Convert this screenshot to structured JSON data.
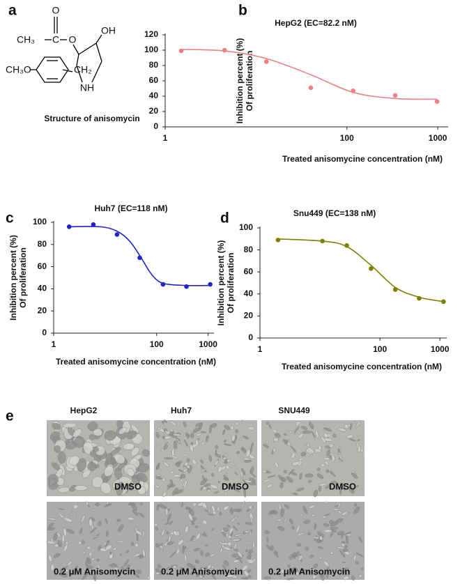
{
  "panel_labels": [
    "a",
    "b",
    "c",
    "d",
    "e"
  ],
  "structure": {
    "atoms": [
      "O",
      "CH₃",
      "C",
      "O",
      "OH",
      "CH₃O",
      "CH₂",
      "NH"
    ],
    "caption": "Structure of anisomycin"
  },
  "chart_data": [
    {
      "type": "line",
      "title": "HepG2 (EC=82.2 nM)",
      "ylabel": [
        "Inhibition percent (%)",
        "Of proliferation"
      ],
      "xlabel": "Treated anisomycine concentration  (nM)",
      "xscale": "log",
      "xlim": [
        1,
        1300
      ],
      "xticks": [
        1,
        100,
        1000
      ],
      "ylim": [
        0,
        120
      ],
      "yticks": [
        0,
        20,
        40,
        60,
        80,
        100,
        120
      ],
      "x": [
        1.5,
        4.5,
        13,
        40,
        117,
        340,
        980
      ],
      "series": [
        {
          "color": "#f08080",
          "values": [
            99,
            100,
            85,
            51,
            47,
            41,
            33
          ]
        },
        {
          "color": "#f08080",
          "x": [
            1.5,
            4.5,
            13,
            40,
            117,
            340,
            980
          ],
          "values": [
            101,
            99,
            89,
            68,
            45,
            37,
            36
          ]
        }
      ]
    },
    {
      "type": "line",
      "title": "Huh7 (EC=118 nM)",
      "ylabel": [
        "Inhibition percent (%)",
        "Of proliferation"
      ],
      "xlabel": "Treated anisomycine concentration  (nM)",
      "xscale": "log",
      "xlim": [
        1,
        1300
      ],
      "xticks": [
        1,
        100,
        1000
      ],
      "ylim": [
        0,
        100
      ],
      "yticks": [
        0,
        20,
        40,
        60,
        80,
        100
      ],
      "x": [
        2,
        5.9,
        17,
        47,
        133,
        380,
        1100
      ],
      "series": [
        {
          "color": "#1f24c8",
          "values": [
            96,
            98,
            89,
            68,
            44,
            42,
            44
          ]
        },
        {
          "color": "#1f24c8",
          "x": [
            2,
            8,
            17,
            30,
            50,
            80,
            133,
            380,
            1100
          ],
          "values": [
            96,
            96,
            92,
            83,
            68,
            53,
            45,
            43,
            43
          ]
        }
      ]
    },
    {
      "type": "line",
      "title": "Snu449 (EC=138 nM)",
      "ylabel": [
        "Inhibition percent (%)",
        "Of proliferation"
      ],
      "xlabel": "Treated anisomycine concentration  (nM)",
      "xscale": "log",
      "xlim": [
        1,
        1300
      ],
      "xticks": [
        1,
        100,
        1000
      ],
      "ylim": [
        0,
        100
      ],
      "yticks": [
        0,
        20,
        40,
        60,
        80,
        100
      ],
      "x": [
        2,
        11,
        28,
        71,
        180,
        450,
        1150
      ],
      "series": [
        {
          "color": "#7f7f00",
          "values": [
            89,
            88,
            84,
            63,
            44,
            36,
            33
          ]
        },
        {
          "color": "#7f7f00",
          "x": [
            2,
            11,
            28,
            71,
            180,
            450,
            1150
          ],
          "values": [
            90,
            88,
            83,
            66,
            46,
            37,
            33
          ]
        }
      ]
    }
  ],
  "micrographs": {
    "columns": [
      "HepG2",
      "Huh7",
      "SNU449"
    ],
    "rows": [
      "DMSO",
      "0.2 μM Anisomycin"
    ]
  }
}
